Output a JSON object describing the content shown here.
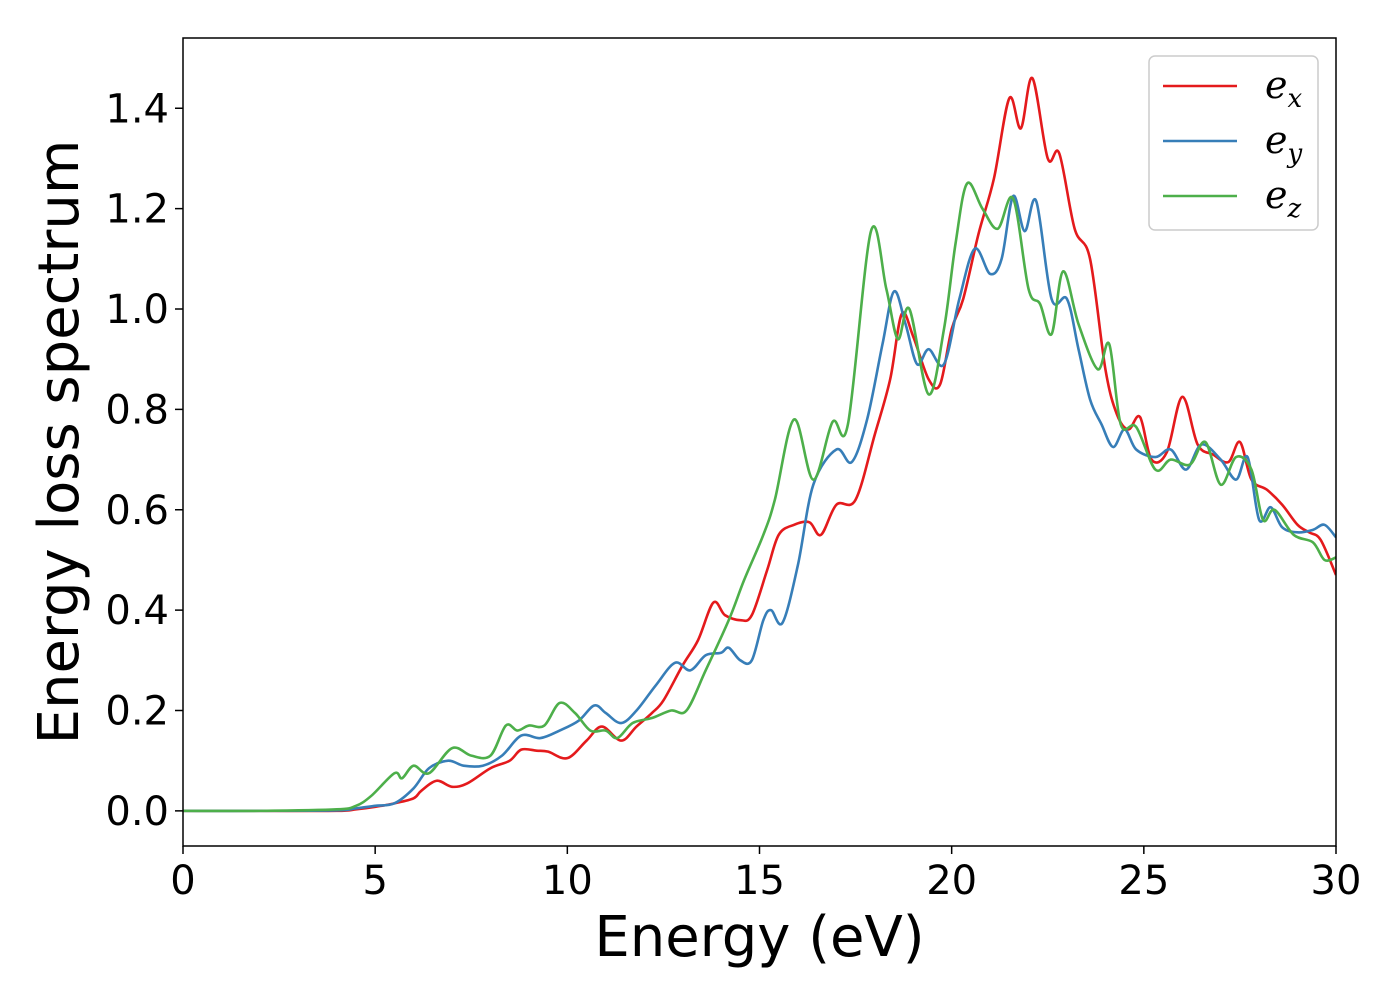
{
  "chart_data": {
    "type": "line",
    "xlabel": "Energy (eV)",
    "ylabel": "Energy loss spectrum",
    "xlim": [
      0,
      30
    ],
    "ylim": [
      -0.07,
      1.54
    ],
    "xticks": [
      0,
      5,
      10,
      15,
      20,
      25,
      30
    ],
    "yticks": [
      0.0,
      0.2,
      0.4,
      0.6,
      0.8,
      1.0,
      1.2,
      1.4
    ],
    "grid": false,
    "legend_position": "top-right",
    "series": [
      {
        "name": "e_x",
        "label_base": "e",
        "label_sub": "x",
        "color": "#e41a1c",
        "points": [
          [
            0,
            0
          ],
          [
            2,
            0
          ],
          [
            4,
            0
          ],
          [
            4.5,
            0.003
          ],
          [
            5,
            0.008
          ],
          [
            5.5,
            0.015
          ],
          [
            6,
            0.025
          ],
          [
            6.2,
            0.04
          ],
          [
            6.6,
            0.06
          ],
          [
            7,
            0.048
          ],
          [
            7.4,
            0.055
          ],
          [
            8,
            0.085
          ],
          [
            8.5,
            0.1
          ],
          [
            8.8,
            0.122
          ],
          [
            9.2,
            0.12
          ],
          [
            9.5,
            0.118
          ],
          [
            10,
            0.105
          ],
          [
            10.5,
            0.14
          ],
          [
            10.9,
            0.168
          ],
          [
            11.4,
            0.14
          ],
          [
            11.8,
            0.168
          ],
          [
            12.2,
            0.195
          ],
          [
            12.5,
            0.22
          ],
          [
            13,
            0.29
          ],
          [
            13.4,
            0.34
          ],
          [
            13.8,
            0.415
          ],
          [
            14.1,
            0.39
          ],
          [
            14.5,
            0.38
          ],
          [
            14.8,
            0.39
          ],
          [
            15.2,
            0.48
          ],
          [
            15.5,
            0.55
          ],
          [
            15.9,
            0.57
          ],
          [
            16.3,
            0.575
          ],
          [
            16.6,
            0.55
          ],
          [
            17,
            0.61
          ],
          [
            17.5,
            0.62
          ],
          [
            18,
            0.75
          ],
          [
            18.4,
            0.86
          ],
          [
            18.7,
            0.99
          ],
          [
            19,
            0.945
          ],
          [
            19.4,
            0.86
          ],
          [
            19.7,
            0.85
          ],
          [
            20,
            0.96
          ],
          [
            20.3,
            1.02
          ],
          [
            20.7,
            1.15
          ],
          [
            21.1,
            1.26
          ],
          [
            21.5,
            1.42
          ],
          [
            21.8,
            1.36
          ],
          [
            22.1,
            1.46
          ],
          [
            22.5,
            1.3
          ],
          [
            22.8,
            1.31
          ],
          [
            23.2,
            1.16
          ],
          [
            23.6,
            1.1
          ],
          [
            24,
            0.88
          ],
          [
            24.3,
            0.79
          ],
          [
            24.6,
            0.76
          ],
          [
            24.9,
            0.785
          ],
          [
            25.2,
            0.7
          ],
          [
            25.6,
            0.715
          ],
          [
            26,
            0.825
          ],
          [
            26.4,
            0.73
          ],
          [
            26.8,
            0.71
          ],
          [
            27.2,
            0.695
          ],
          [
            27.5,
            0.735
          ],
          [
            27.8,
            0.66
          ],
          [
            28.2,
            0.64
          ],
          [
            28.6,
            0.61
          ],
          [
            29,
            0.57
          ],
          [
            29.3,
            0.555
          ],
          [
            29.6,
            0.54
          ],
          [
            30,
            0.47
          ]
        ]
      },
      {
        "name": "e_y",
        "label_base": "e",
        "label_sub": "y",
        "color": "#377eb8",
        "points": [
          [
            0,
            0
          ],
          [
            2,
            0
          ],
          [
            4,
            0.001
          ],
          [
            4.5,
            0.005
          ],
          [
            5,
            0.01
          ],
          [
            5.5,
            0.015
          ],
          [
            6,
            0.045
          ],
          [
            6.4,
            0.085
          ],
          [
            6.9,
            0.1
          ],
          [
            7.3,
            0.09
          ],
          [
            7.8,
            0.09
          ],
          [
            8.3,
            0.11
          ],
          [
            8.8,
            0.15
          ],
          [
            9.3,
            0.145
          ],
          [
            9.8,
            0.16
          ],
          [
            10.3,
            0.18
          ],
          [
            10.7,
            0.21
          ],
          [
            11,
            0.195
          ],
          [
            11.4,
            0.175
          ],
          [
            11.8,
            0.2
          ],
          [
            12.3,
            0.25
          ],
          [
            12.8,
            0.295
          ],
          [
            13.2,
            0.28
          ],
          [
            13.6,
            0.31
          ],
          [
            14,
            0.315
          ],
          [
            14.2,
            0.325
          ],
          [
            14.5,
            0.3
          ],
          [
            14.8,
            0.3
          ],
          [
            15.1,
            0.38
          ],
          [
            15.3,
            0.4
          ],
          [
            15.6,
            0.375
          ],
          [
            16,
            0.49
          ],
          [
            16.4,
            0.65
          ],
          [
            17,
            0.72
          ],
          [
            17.4,
            0.695
          ],
          [
            17.8,
            0.78
          ],
          [
            18.2,
            0.93
          ],
          [
            18.5,
            1.035
          ],
          [
            18.8,
            0.97
          ],
          [
            19.1,
            0.89
          ],
          [
            19.4,
            0.92
          ],
          [
            19.8,
            0.89
          ],
          [
            20.2,
            1.02
          ],
          [
            20.6,
            1.12
          ],
          [
            21,
            1.07
          ],
          [
            21.3,
            1.1
          ],
          [
            21.6,
            1.225
          ],
          [
            21.9,
            1.155
          ],
          [
            22.2,
            1.215
          ],
          [
            22.6,
            1.02
          ],
          [
            23,
            1.02
          ],
          [
            23.3,
            0.92
          ],
          [
            23.6,
            0.82
          ],
          [
            23.9,
            0.77
          ],
          [
            24.2,
            0.725
          ],
          [
            24.5,
            0.76
          ],
          [
            24.8,
            0.72
          ],
          [
            25.3,
            0.705
          ],
          [
            25.7,
            0.72
          ],
          [
            26.1,
            0.68
          ],
          [
            26.5,
            0.73
          ],
          [
            27,
            0.7
          ],
          [
            27.4,
            0.66
          ],
          [
            27.7,
            0.705
          ],
          [
            28,
            0.58
          ],
          [
            28.3,
            0.605
          ],
          [
            28.6,
            0.565
          ],
          [
            29,
            0.555
          ],
          [
            29.4,
            0.56
          ],
          [
            29.7,
            0.57
          ],
          [
            30,
            0.545
          ]
        ]
      },
      {
        "name": "e_z",
        "label_base": "e",
        "label_sub": "z",
        "color": "#4daf4a",
        "points": [
          [
            0,
            0
          ],
          [
            2,
            0
          ],
          [
            4,
            0.003
          ],
          [
            4.5,
            0.01
          ],
          [
            4.9,
            0.03
          ],
          [
            5.5,
            0.075
          ],
          [
            5.7,
            0.065
          ],
          [
            6,
            0.09
          ],
          [
            6.4,
            0.075
          ],
          [
            7,
            0.125
          ],
          [
            7.5,
            0.11
          ],
          [
            8,
            0.11
          ],
          [
            8.4,
            0.17
          ],
          [
            8.7,
            0.16
          ],
          [
            9,
            0.17
          ],
          [
            9.4,
            0.17
          ],
          [
            9.8,
            0.215
          ],
          [
            10.2,
            0.195
          ],
          [
            10.6,
            0.16
          ],
          [
            11,
            0.16
          ],
          [
            11.3,
            0.145
          ],
          [
            11.7,
            0.175
          ],
          [
            12.2,
            0.185
          ],
          [
            12.7,
            0.2
          ],
          [
            13.1,
            0.2
          ],
          [
            13.6,
            0.28
          ],
          [
            14.2,
            0.38
          ],
          [
            14.6,
            0.46
          ],
          [
            15.1,
            0.55
          ],
          [
            15.4,
            0.62
          ],
          [
            15.9,
            0.78
          ],
          [
            16.4,
            0.66
          ],
          [
            16.9,
            0.775
          ],
          [
            17.3,
            0.77
          ],
          [
            17.9,
            1.155
          ],
          [
            18.3,
            1.04
          ],
          [
            18.6,
            0.94
          ],
          [
            18.9,
            1.0
          ],
          [
            19.4,
            0.83
          ],
          [
            19.8,
            0.96
          ],
          [
            20.1,
            1.13
          ],
          [
            20.4,
            1.25
          ],
          [
            20.8,
            1.2
          ],
          [
            21.2,
            1.16
          ],
          [
            21.6,
            1.22
          ],
          [
            22,
            1.04
          ],
          [
            22.3,
            1.01
          ],
          [
            22.6,
            0.95
          ],
          [
            22.9,
            1.075
          ],
          [
            23.3,
            0.97
          ],
          [
            23.8,
            0.88
          ],
          [
            24.1,
            0.93
          ],
          [
            24.4,
            0.77
          ],
          [
            24.8,
            0.765
          ],
          [
            25.3,
            0.68
          ],
          [
            25.7,
            0.7
          ],
          [
            26.2,
            0.69
          ],
          [
            26.6,
            0.735
          ],
          [
            27,
            0.65
          ],
          [
            27.4,
            0.705
          ],
          [
            27.8,
            0.68
          ],
          [
            28.1,
            0.58
          ],
          [
            28.4,
            0.6
          ],
          [
            28.9,
            0.55
          ],
          [
            29.4,
            0.535
          ],
          [
            29.7,
            0.5
          ],
          [
            30,
            0.505
          ]
        ]
      }
    ]
  }
}
